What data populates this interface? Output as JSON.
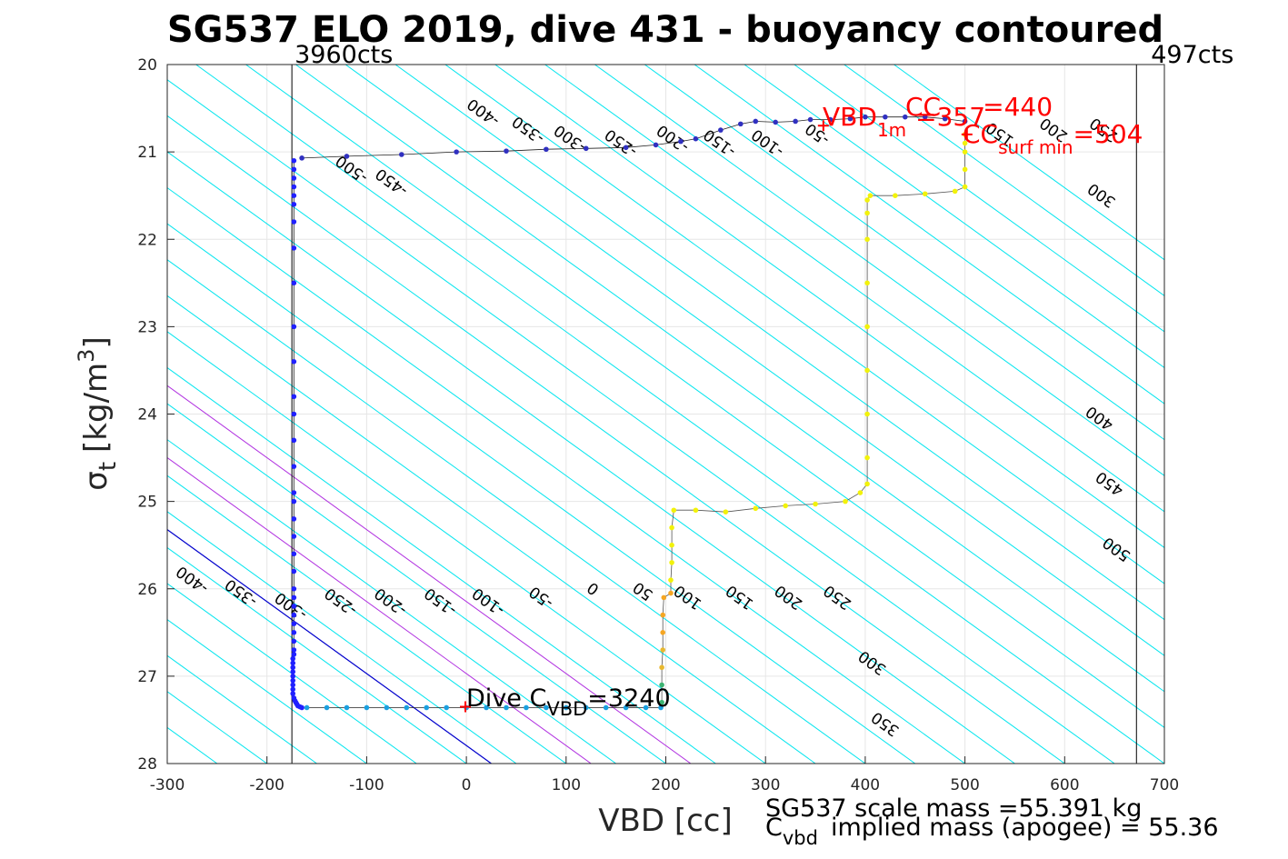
{
  "chart_data": {
    "type": "scatter",
    "title": "SG537 ELO 2019, dive 431 - buoyancy contoured",
    "xlabel": "VBD [cc]",
    "ylabel_main": "σ",
    "ylabel_sub": "t",
    "ylabel_units": "[kg/m",
    "ylabel_sup": "3",
    "ylabel_close": "]",
    "xlim": [
      -300,
      700
    ],
    "ylim": [
      20,
      28
    ],
    "y_reversed": true,
    "grid": true,
    "xticks": [
      -300,
      -200,
      -100,
      0,
      100,
      200,
      300,
      400,
      500,
      600,
      700
    ],
    "xtick_labels": [
      "-300",
      "-200",
      "-100",
      "0",
      "100",
      "200",
      "300",
      "400",
      "500",
      "600",
      "700"
    ],
    "yticks": [
      20,
      21,
      22,
      23,
      24,
      25,
      26,
      27,
      28
    ],
    "ytick_labels": [
      "20",
      "21",
      "22",
      "23",
      "24",
      "25",
      "26",
      "27",
      "28"
    ],
    "vlines": [
      {
        "x": -175,
        "label": "3960cts",
        "label_side": "left"
      },
      {
        "x": 672,
        "label": "497cts",
        "label_side": "right"
      }
    ],
    "contours": {
      "slope_vbd_per_sigma": 121.4,
      "x_at_sigma28": [
        -300,
        -250,
        -200,
        -150,
        -100,
        -50,
        0,
        50,
        100,
        150,
        200,
        250,
        300,
        350,
        400,
        450,
        500,
        550,
        600,
        650,
        700,
        750,
        800,
        850,
        900,
        950,
        1000,
        1050,
        1100,
        1150,
        1200,
        1250,
        1300,
        1350,
        1400
      ],
      "color": "#00e5ee",
      "zero_line_x_at_sigma28": 25,
      "zero_line_color": "#0000cc",
      "magenta_lines_x_at_sigma28": [
        125,
        225
      ],
      "magenta_color": "#b030e0"
    },
    "contour_labels": [
      {
        "text": "-400",
        "x": -272,
        "y": 25.85
      },
      {
        "text": "-350",
        "x": -223,
        "y": 26.0
      },
      {
        "text": "-300",
        "x": -173,
        "y": 26.15
      },
      {
        "text": "-250",
        "x": -123,
        "y": 26.1
      },
      {
        "text": "-200",
        "x": -73,
        "y": 26.1
      },
      {
        "text": "-150",
        "x": -23,
        "y": 26.1
      },
      {
        "text": "-100",
        "x": 25,
        "y": 26.1
      },
      {
        "text": "-50",
        "x": 78,
        "y": 26.05
      },
      {
        "text": "0",
        "x": 130,
        "y": 25.95
      },
      {
        "text": "50",
        "x": 180,
        "y": 25.98
      },
      {
        "text": "100",
        "x": 225,
        "y": 26.05
      },
      {
        "text": "150",
        "x": 277,
        "y": 26.05
      },
      {
        "text": "200",
        "x": 326,
        "y": 26.05
      },
      {
        "text": "250",
        "x": 375,
        "y": 26.05
      },
      {
        "text": "300",
        "x": 410,
        "y": 26.8
      },
      {
        "text": "350",
        "x": 423,
        "y": 27.5
      },
      {
        "text": "-500",
        "x": -112,
        "y": 21.15
      },
      {
        "text": "-450",
        "x": -72,
        "y": 21.3
      },
      {
        "text": "-400",
        "x": 20,
        "y": 20.5
      },
      {
        "text": "-350",
        "x": 65,
        "y": 20.7
      },
      {
        "text": "-300",
        "x": 107,
        "y": 20.8
      },
      {
        "text": "-250",
        "x": 158,
        "y": 20.85
      },
      {
        "text": "-200",
        "x": 210,
        "y": 20.8
      },
      {
        "text": "-150",
        "x": 257,
        "y": 20.85
      },
      {
        "text": "-100",
        "x": 305,
        "y": 20.85
      },
      {
        "text": "-50",
        "x": 355,
        "y": 20.75
      },
      {
        "text": "150",
        "x": 538,
        "y": 20.75
      },
      {
        "text": "200",
        "x": 592,
        "y": 20.7
      },
      {
        "text": "250",
        "x": 642,
        "y": 20.7
      },
      {
        "text": "300",
        "x": 640,
        "y": 21.45
      },
      {
        "text": "400",
        "x": 638,
        "y": 24.0
      },
      {
        "text": "450",
        "x": 648,
        "y": 24.75
      },
      {
        "text": "500",
        "x": 655,
        "y": 25.5
      }
    ],
    "series": [
      {
        "kind": "dive",
        "color": "#2020ff",
        "x": [
          -173,
          -173,
          -173,
          -173,
          -173,
          -173,
          -173,
          -173,
          -173,
          -173,
          -173,
          -173,
          -173,
          -173,
          -173,
          -173,
          -173,
          -173,
          -173,
          -173,
          -173,
          -173,
          -173,
          -173,
          -173,
          -173,
          -173,
          -173,
          -173,
          -173,
          -174,
          -174,
          -174,
          -174,
          -174,
          -174,
          -174,
          -174,
          -174,
          -173,
          -172,
          -171,
          -170,
          -169,
          -167,
          -165
        ],
        "y": [
          21.1,
          21.2,
          21.3,
          21.4,
          21.5,
          21.6,
          21.8,
          22.1,
          22.5,
          23.0,
          23.4,
          23.8,
          24.0,
          24.3,
          24.6,
          24.9,
          25.0,
          25.2,
          25.4,
          25.6,
          25.8,
          26.0,
          26.1,
          26.2,
          26.3,
          26.4,
          26.5,
          26.6,
          26.7,
          26.75,
          26.8,
          26.85,
          26.9,
          26.95,
          27.0,
          27.05,
          27.1,
          27.15,
          27.2,
          27.25,
          27.28,
          27.3,
          27.32,
          27.34,
          27.35,
          27.36
        ]
      },
      {
        "kind": "bottom",
        "color": "#1aa0e0",
        "x": [
          -160,
          -140,
          -120,
          -100,
          -80,
          -60,
          -40,
          -20,
          0,
          20,
          40,
          60,
          80,
          100,
          120,
          140,
          160,
          180,
          195
        ],
        "y": [
          27.36,
          27.36,
          27.36,
          27.36,
          27.36,
          27.36,
          27.36,
          27.36,
          27.36,
          27.36,
          27.36,
          27.36,
          27.36,
          27.36,
          27.36,
          27.36,
          27.36,
          27.36,
          27.36
        ]
      },
      {
        "kind": "climb",
        "x": [
          196,
          196,
          196,
          197,
          197,
          197,
          198,
          205,
          205,
          206,
          206,
          206,
          208,
          230,
          260,
          290,
          320,
          350,
          380,
          395,
          402,
          402,
          402,
          402,
          402,
          402,
          402,
          402,
          402,
          405,
          430,
          460,
          490,
          500,
          500,
          500,
          500,
          500
        ],
        "y": [
          27.3,
          27.1,
          26.9,
          26.7,
          26.5,
          26.3,
          26.1,
          26.05,
          25.9,
          25.7,
          25.5,
          25.3,
          25.1,
          25.1,
          25.12,
          25.08,
          25.05,
          25.03,
          25.0,
          24.9,
          24.8,
          24.5,
          24.0,
          23.5,
          23.0,
          22.5,
          22.0,
          21.7,
          21.55,
          21.5,
          21.5,
          21.48,
          21.45,
          21.4,
          21.2,
          21.0,
          20.9,
          20.8
        ]
      },
      {
        "kind": "surface",
        "color": "#3030c0",
        "x": [
          -165,
          -120,
          -65,
          -10,
          40,
          80,
          120,
          160,
          190,
          215,
          230,
          255,
          275,
          290,
          310,
          330,
          345,
          365,
          385,
          400,
          420,
          440,
          460,
          480,
          500
        ],
        "y": [
          21.07,
          21.05,
          21.03,
          21.0,
          20.99,
          20.97,
          20.96,
          20.95,
          20.92,
          20.88,
          20.85,
          20.75,
          20.68,
          20.65,
          20.66,
          20.65,
          20.63,
          20.63,
          20.62,
          20.6,
          20.6,
          20.6,
          20.6,
          20.62,
          20.65
        ]
      }
    ],
    "markers": [
      {
        "x": -1,
        "y": 27.35,
        "color": "#ff0000",
        "symbol": "+"
      },
      {
        "x": 358,
        "y": 20.7,
        "color": "#ff0000",
        "symbol": "+"
      },
      {
        "x": 502,
        "y": 20.8,
        "color": "#ff0000",
        "symbol": "+"
      }
    ],
    "annotations": {
      "dive_cvbd": {
        "main": "Dive C",
        "sub": "VBD",
        "value": "=3240",
        "color": "#000000"
      },
      "vbd_1m": {
        "main": "VBD",
        "sub": "1m",
        "value": "=357",
        "color": "#ff0000"
      },
      "cc_440": {
        "main": "CC",
        "sub": "",
        "value": "=440",
        "color": "#ff0000"
      },
      "cc_surf_min": {
        "main": "CC",
        "sub": "surf min",
        "value": "=504",
        "color": "#ff0000"
      }
    },
    "bottom_notes": {
      "scale_mass": "SG537 scale mass =55.391 kg",
      "implied_mass_main": "C",
      "implied_mass_sub": "vbd",
      "implied_mass_rest": "implied mass (apogee) = 55.36"
    }
  }
}
